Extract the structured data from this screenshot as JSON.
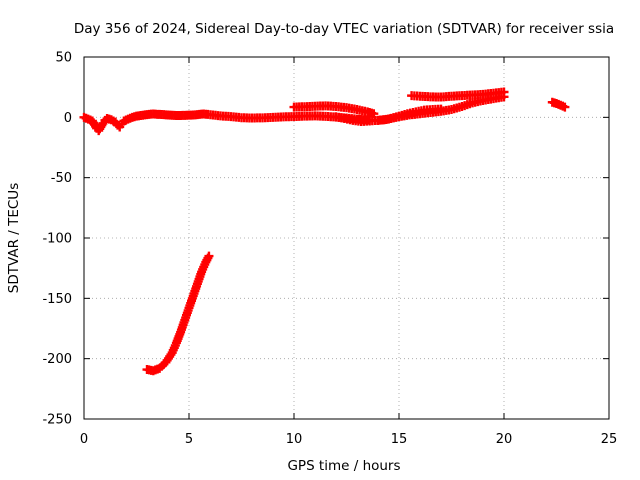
{
  "chart_data": {
    "type": "scatter",
    "title": "Day 356 of 2024, Sidereal Day-to-day VTEC variation (SDTVAR) for receiver ssia",
    "xlabel": "GPS time / hours",
    "ylabel": "SDTVAR / TECUs",
    "xlim": [
      0,
      25
    ],
    "ylim": [
      -250,
      50
    ],
    "xticks": [
      0,
      5,
      10,
      15,
      20,
      25
    ],
    "yticks": [
      -250,
      -200,
      -150,
      -100,
      -50,
      0,
      50
    ],
    "grid": true,
    "marker": "plus",
    "color": "#ff0000",
    "series": [
      {
        "points": [
          [
            0.0,
            0.0
          ],
          [
            0.2,
            -1.5
          ],
          [
            0.4,
            -3.0
          ],
          [
            0.5,
            -6.0
          ],
          [
            0.6,
            -9.0
          ],
          [
            0.7,
            -11.0
          ],
          [
            0.8,
            -8.0
          ],
          [
            0.9,
            -5.0
          ],
          [
            1.0,
            -2.5
          ],
          [
            1.1,
            -1.0
          ],
          [
            1.3,
            -2.0
          ],
          [
            1.5,
            -4.0
          ],
          [
            1.6,
            -6.5
          ],
          [
            1.7,
            -8.0
          ],
          [
            1.8,
            -5.5
          ],
          [
            1.9,
            -3.0
          ],
          [
            2.1,
            -1.5
          ],
          [
            2.3,
            0.0
          ],
          [
            2.5,
            1.0
          ],
          [
            2.7,
            1.5
          ],
          [
            2.9,
            2.0
          ],
          [
            3.1,
            2.5
          ],
          [
            3.3,
            2.8
          ],
          [
            3.5,
            2.5
          ],
          [
            3.8,
            2.2
          ],
          [
            4.1,
            1.8
          ],
          [
            4.4,
            1.5
          ],
          [
            4.7,
            1.6
          ],
          [
            5.0,
            1.8
          ],
          [
            5.3,
            2.0
          ],
          [
            5.5,
            2.5
          ],
          [
            5.7,
            2.8
          ],
          [
            5.9,
            2.4
          ],
          [
            6.5,
            1.2
          ],
          [
            7.0,
            0.6
          ],
          [
            7.5,
            -0.3
          ],
          [
            8.0,
            -0.6
          ],
          [
            8.5,
            -0.4
          ],
          [
            9.0,
            0.0
          ],
          [
            9.5,
            0.4
          ],
          [
            10.0,
            0.6
          ],
          [
            10.5,
            1.0
          ],
          [
            11.0,
            1.2
          ],
          [
            11.5,
            0.8
          ],
          [
            12.0,
            0.2
          ],
          [
            12.5,
            -0.6
          ],
          [
            13.0,
            -1.5
          ],
          [
            13.3,
            -2.0
          ],
          [
            13.6,
            -2.3
          ],
          [
            14.0,
            -2.5
          ],
          [
            14.3,
            -2.0
          ],
          [
            14.6,
            -1.0
          ],
          [
            15.0,
            0.5
          ],
          [
            15.5,
            2.0
          ],
          [
            16.0,
            3.0
          ],
          [
            16.5,
            4.0
          ],
          [
            17.0,
            5.0
          ],
          [
            17.5,
            6.5
          ],
          [
            18.0,
            9.0
          ],
          [
            18.5,
            12.0
          ],
          [
            19.0,
            14.0
          ],
          [
            19.5,
            15.5
          ],
          [
            20.0,
            17.0
          ]
        ]
      },
      {
        "points": [
          [
            10.0,
            8.5
          ],
          [
            10.5,
            8.8
          ],
          [
            11.0,
            9.2
          ],
          [
            11.5,
            9.5
          ],
          [
            12.0,
            9.0
          ],
          [
            12.5,
            8.0
          ],
          [
            13.0,
            6.5
          ],
          [
            13.5,
            4.5
          ],
          [
            13.8,
            3.0
          ]
        ]
      },
      {
        "points": [
          [
            12.0,
            0.5
          ],
          [
            12.4,
            -1.0
          ],
          [
            12.8,
            -2.5
          ],
          [
            13.2,
            -3.5
          ],
          [
            13.6,
            -3.0
          ],
          [
            14.0,
            -2.5
          ],
          [
            14.5,
            -1.5
          ],
          [
            15.0,
            1.0
          ],
          [
            15.4,
            3.0
          ],
          [
            15.8,
            4.5
          ],
          [
            16.2,
            6.0
          ],
          [
            16.6,
            6.5
          ],
          [
            17.0,
            6.8
          ]
        ]
      },
      {
        "points": [
          [
            15.6,
            18.0
          ],
          [
            16.0,
            17.5
          ],
          [
            16.5,
            17.0
          ],
          [
            17.0,
            16.8
          ],
          [
            17.5,
            17.5
          ],
          [
            18.0,
            18.0
          ],
          [
            18.5,
            18.5
          ],
          [
            19.0,
            19.0
          ],
          [
            19.5,
            20.0
          ],
          [
            20.0,
            21.0
          ]
        ]
      },
      {
        "points": [
          [
            22.3,
            12.5
          ],
          [
            22.5,
            11.5
          ],
          [
            22.7,
            10.0
          ],
          [
            22.9,
            8.5
          ]
        ]
      },
      {
        "points": [
          [
            3.0,
            -209.0
          ],
          [
            3.3,
            -210.0
          ],
          [
            3.6,
            -208.0
          ],
          [
            3.9,
            -203.0
          ],
          [
            4.2,
            -195.0
          ],
          [
            4.4,
            -187.0
          ],
          [
            4.6,
            -178.0
          ],
          [
            4.8,
            -168.0
          ],
          [
            5.0,
            -158.0
          ],
          [
            5.2,
            -148.0
          ],
          [
            5.4,
            -138.0
          ],
          [
            5.6,
            -128.0
          ],
          [
            5.8,
            -120.0
          ],
          [
            5.95,
            -115.0
          ]
        ]
      }
    ]
  }
}
